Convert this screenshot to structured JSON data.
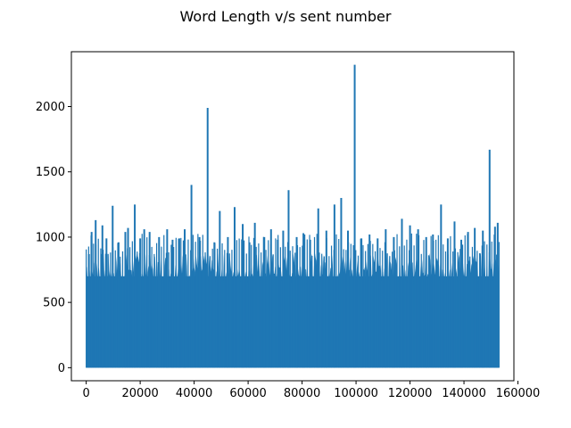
{
  "chart_data": {
    "type": "line",
    "title": "Word Length v/s sent number",
    "xlabel": "",
    "ylabel": "",
    "xlim": [
      -5500,
      158500
    ],
    "ylim": [
      -100,
      2420
    ],
    "xticks": [
      0,
      20000,
      40000,
      60000,
      80000,
      100000,
      120000,
      140000,
      160000
    ],
    "yticks": [
      0,
      500,
      1000,
      1500,
      2000
    ],
    "grid": false,
    "series_color": "#1f77b4",
    "x_range": [
      0,
      153000
    ],
    "peaks": [
      {
        "x": 1000,
        "y": 870
      },
      {
        "x": 2000,
        "y": 1040
      },
      {
        "x": 3500,
        "y": 1130
      },
      {
        "x": 6000,
        "y": 1090
      },
      {
        "x": 7500,
        "y": 990
      },
      {
        "x": 9800,
        "y": 1240
      },
      {
        "x": 12000,
        "y": 960
      },
      {
        "x": 14500,
        "y": 1040
      },
      {
        "x": 15500,
        "y": 1070
      },
      {
        "x": 18000,
        "y": 1250
      },
      {
        "x": 20000,
        "y": 990
      },
      {
        "x": 21500,
        "y": 1060
      },
      {
        "x": 23500,
        "y": 1040
      },
      {
        "x": 27000,
        "y": 1000
      },
      {
        "x": 30000,
        "y": 1060
      },
      {
        "x": 32000,
        "y": 980
      },
      {
        "x": 34500,
        "y": 990
      },
      {
        "x": 36500,
        "y": 1060
      },
      {
        "x": 39000,
        "y": 1400
      },
      {
        "x": 42000,
        "y": 1000
      },
      {
        "x": 45000,
        "y": 1990
      },
      {
        "x": 47500,
        "y": 960
      },
      {
        "x": 49500,
        "y": 1200
      },
      {
        "x": 52500,
        "y": 1000
      },
      {
        "x": 55000,
        "y": 1230
      },
      {
        "x": 58000,
        "y": 1100
      },
      {
        "x": 60500,
        "y": 960
      },
      {
        "x": 62500,
        "y": 1110
      },
      {
        "x": 66000,
        "y": 1000
      },
      {
        "x": 68500,
        "y": 1060
      },
      {
        "x": 71000,
        "y": 980
      },
      {
        "x": 73000,
        "y": 1050
      },
      {
        "x": 75000,
        "y": 1360
      },
      {
        "x": 78000,
        "y": 1000
      },
      {
        "x": 80500,
        "y": 1030
      },
      {
        "x": 83000,
        "y": 980
      },
      {
        "x": 86000,
        "y": 1220
      },
      {
        "x": 89000,
        "y": 1050
      },
      {
        "x": 92000,
        "y": 1250
      },
      {
        "x": 94500,
        "y": 1300
      },
      {
        "x": 97000,
        "y": 1050
      },
      {
        "x": 99500,
        "y": 2320
      },
      {
        "x": 102000,
        "y": 990
      },
      {
        "x": 105000,
        "y": 1020
      },
      {
        "x": 108000,
        "y": 990
      },
      {
        "x": 111000,
        "y": 1060
      },
      {
        "x": 114000,
        "y": 1000
      },
      {
        "x": 117000,
        "y": 1140
      },
      {
        "x": 120000,
        "y": 1090
      },
      {
        "x": 123000,
        "y": 1060
      },
      {
        "x": 126000,
        "y": 1000
      },
      {
        "x": 128500,
        "y": 1020
      },
      {
        "x": 131500,
        "y": 1250
      },
      {
        "x": 134000,
        "y": 990
      },
      {
        "x": 136500,
        "y": 1120
      },
      {
        "x": 139000,
        "y": 980
      },
      {
        "x": 141500,
        "y": 1040
      },
      {
        "x": 144000,
        "y": 1070
      },
      {
        "x": 147000,
        "y": 1050
      },
      {
        "x": 149500,
        "y": 1670
      },
      {
        "x": 151500,
        "y": 1080
      },
      {
        "x": 152500,
        "y": 1110
      }
    ]
  }
}
